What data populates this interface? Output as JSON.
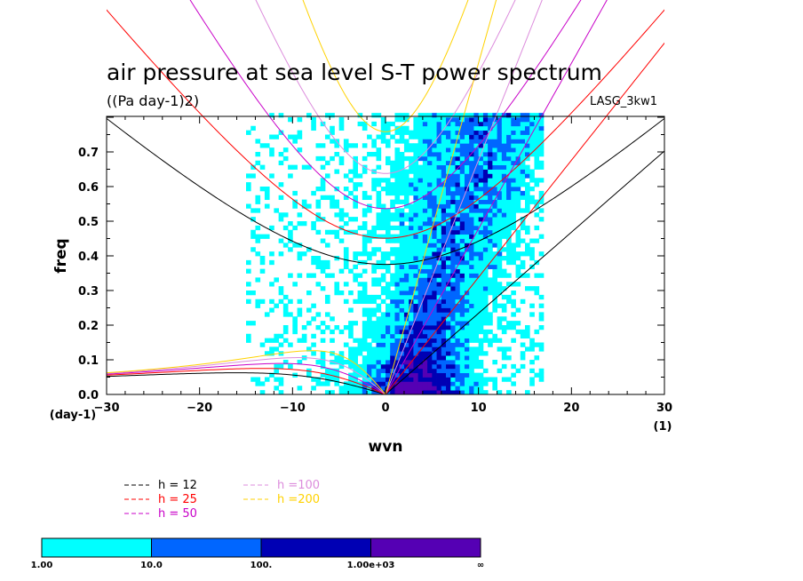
{
  "chart_data": {
    "type": "heatmap",
    "title": "air pressure at sea level S-T power spectrum",
    "subtitle": "((Pa day-1)2)",
    "model_label": "LASG_3kw1",
    "xlabel": "wvn",
    "ylabel": "freq",
    "x_unit_label": "(1)",
    "y_unit_label": "(day-1)",
    "xlim": [
      -30,
      30
    ],
    "ylim": [
      0,
      0.8
    ],
    "x_ticks": [
      "−30",
      "−20",
      "−10",
      "0",
      "10",
      "20",
      "30"
    ],
    "x_tick_values": [
      -30,
      -20,
      -10,
      0,
      10,
      20,
      30
    ],
    "y_ticks": [
      "0.0",
      "0.1",
      "0.2",
      "0.3",
      "0.4",
      "0.5",
      "0.6",
      "0.7"
    ],
    "y_tick_values": [
      0,
      0.1,
      0.2,
      0.3,
      0.4,
      0.5,
      0.6,
      0.7
    ],
    "contour_levels": [
      1,
      10,
      100,
      1000
    ],
    "colorbar": {
      "labels": [
        "1.00",
        "10.0",
        "100.",
        "1.00e+03",
        "∞"
      ],
      "colors": [
        "#00ffff",
        "#0066ff",
        "#0000b4",
        "#5500b4"
      ]
    },
    "dispersion_curves": [
      {
        "label": "h = 12",
        "h": 12,
        "color": "#000000"
      },
      {
        "label": "h = 25",
        "h": 25,
        "color": "#ff0000"
      },
      {
        "label": "h = 50",
        "h": 50,
        "color": "#c800c8"
      },
      {
        "label": "h =100",
        "h": 100,
        "color": "#dc8cdc"
      },
      {
        "label": "h =200",
        "h": 200,
        "color": "#ffd200"
      }
    ],
    "legend_position": "bottom-left",
    "grid": false
  }
}
